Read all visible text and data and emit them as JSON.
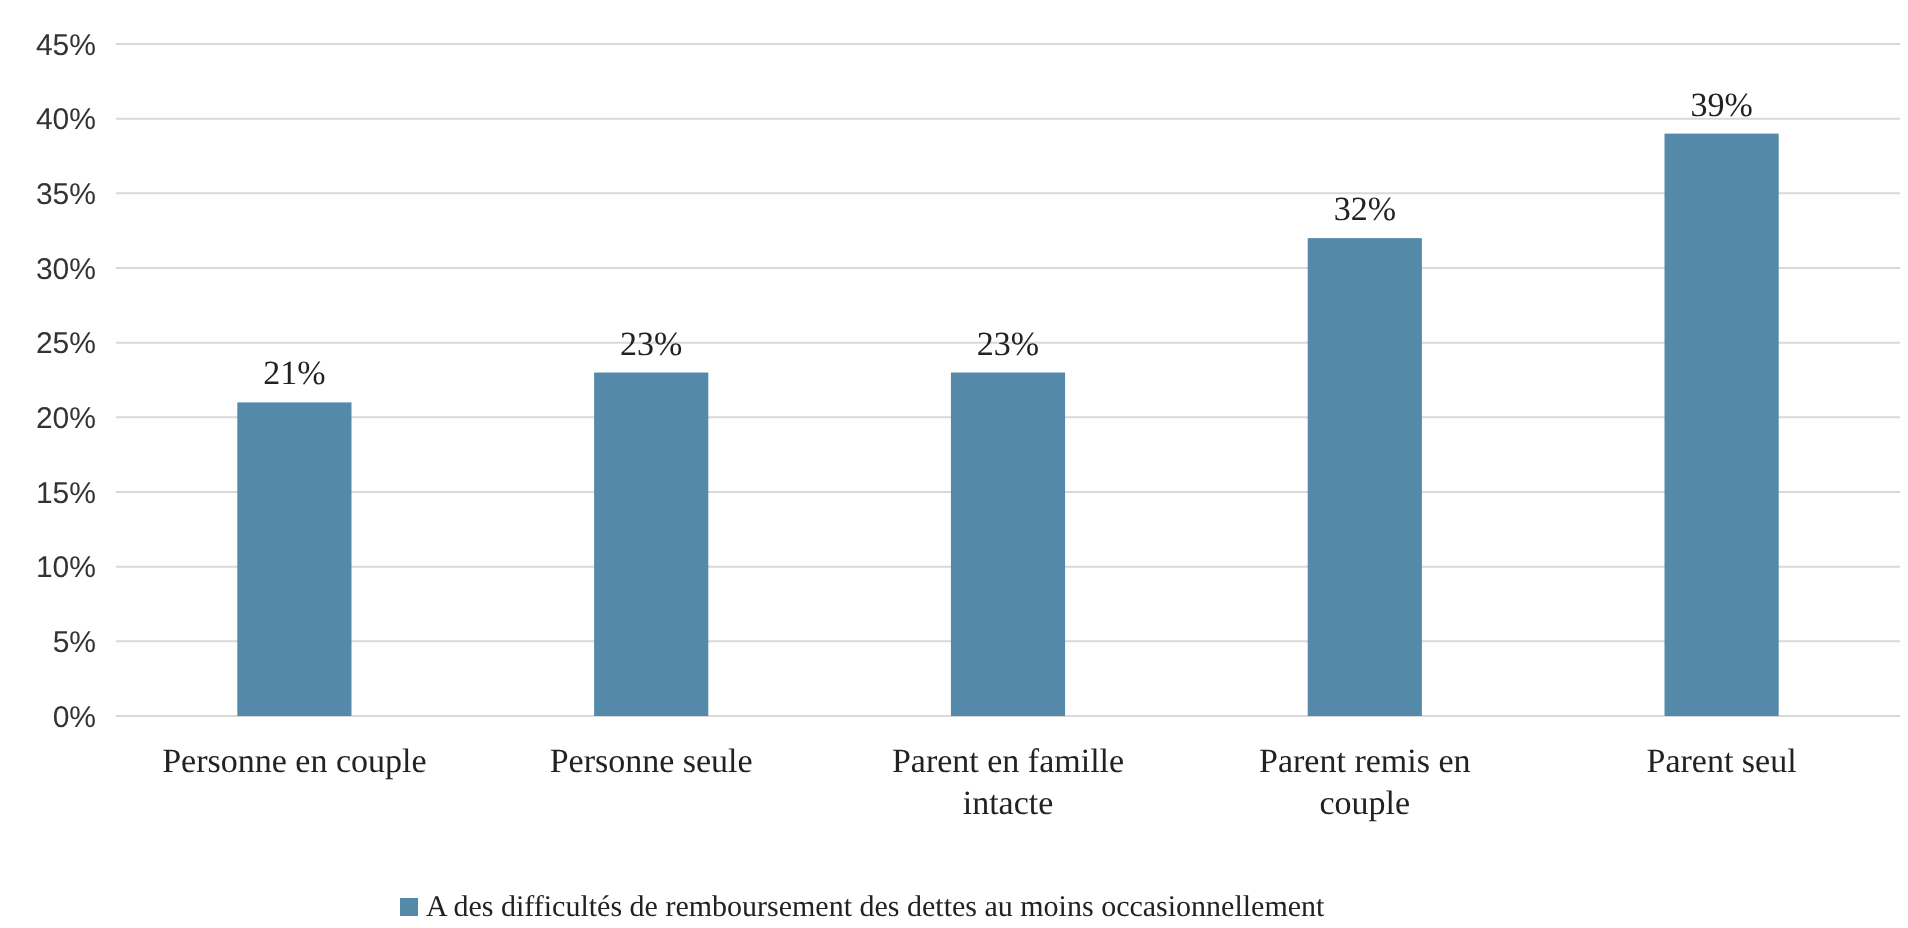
{
  "chart_data": {
    "type": "bar",
    "categories": [
      "Personne en couple",
      "Personne seule",
      "Parent en famille intacte",
      "Parent remis en couple",
      "Parent seul"
    ],
    "series": [
      {
        "name": "A des difficultés de remboursement des dettes au moins occasionnellement",
        "color": "#5589aa",
        "values": [
          21,
          23,
          23,
          32,
          39
        ],
        "value_labels": [
          "21%",
          "23%",
          "23%",
          "32%",
          "39%"
        ]
      }
    ],
    "ylim": [
      0,
      45
    ],
    "yticks": [
      {
        "value": 0,
        "label": "0%"
      },
      {
        "value": 5,
        "label": "5%"
      },
      {
        "value": 10,
        "label": "10%"
      },
      {
        "value": 15,
        "label": "15%"
      },
      {
        "value": 20,
        "label": "20%"
      },
      {
        "value": 25,
        "label": "25%"
      },
      {
        "value": 30,
        "label": "30%"
      },
      {
        "value": 35,
        "label": "35%"
      },
      {
        "value": 40,
        "label": "40%"
      },
      {
        "value": 45,
        "label": "45%"
      }
    ],
    "grid": "y",
    "legend": "bottom"
  }
}
